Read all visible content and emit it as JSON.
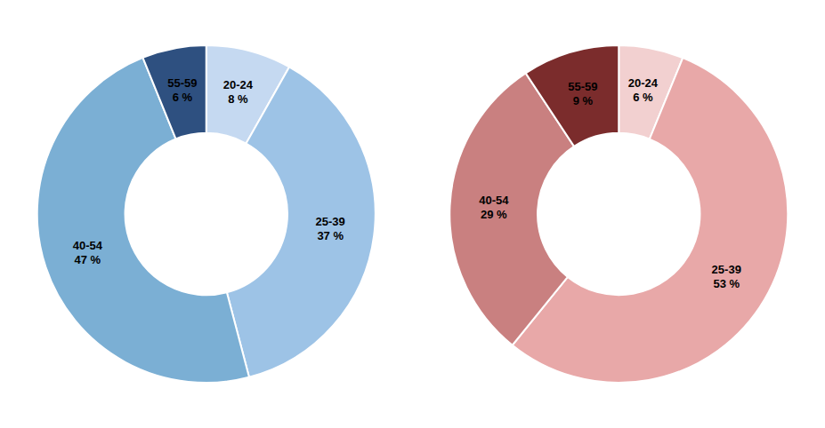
{
  "chart_data": [
    {
      "type": "donut",
      "categories": [
        "20-24",
        "25-39",
        "40-54",
        "55-59"
      ],
      "values": [
        8,
        37,
        47,
        6
      ],
      "value_labels": [
        "8 %",
        "37 %",
        "47 %",
        "6 %"
      ],
      "colors": [
        "#c5d9f1",
        "#9dc3e6",
        "#7bafd4",
        "#2e5080"
      ],
      "data_labels": true
    },
    {
      "type": "donut",
      "categories": [
        "20-24",
        "25-39",
        "40-54",
        "55-59"
      ],
      "values": [
        6,
        53,
        29,
        9
      ],
      "value_labels": [
        "6 %",
        "53 %",
        "29 %",
        "9 %"
      ],
      "colors": [
        "#f2d0d0",
        "#e8a8a8",
        "#c98080",
        "#7b2c2c"
      ],
      "data_labels": true
    }
  ]
}
